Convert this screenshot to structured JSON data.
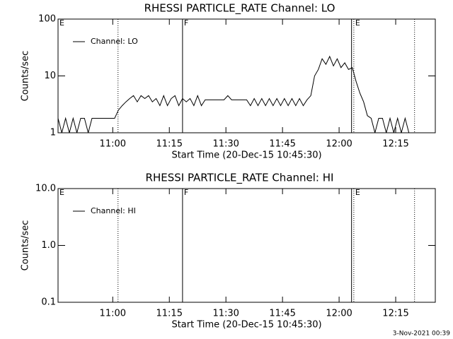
{
  "chart_data": [
    {
      "type": "line",
      "title": "RHESSI PARTICLE_RATE Channel: LO",
      "xlabel": "Start Time (20-Dec-15 10:45:30)",
      "ylabel": "Counts/sec",
      "x": [
        0,
        1,
        2,
        3,
        4,
        5,
        6,
        7,
        8,
        9,
        10,
        11,
        12,
        13,
        14,
        15,
        16,
        17,
        18,
        19,
        20,
        21,
        22,
        23,
        24,
        25,
        26,
        27,
        28,
        29,
        30,
        31,
        32,
        33,
        34,
        35,
        36,
        37,
        38,
        39,
        40,
        41,
        42,
        43,
        44,
        45,
        46,
        47,
        48,
        49,
        50,
        51,
        52,
        53,
        54,
        55,
        56,
        57,
        58,
        59,
        60,
        61,
        62,
        63,
        64,
        65,
        66,
        67,
        68,
        69,
        70,
        71,
        72,
        73,
        74,
        75,
        76,
        77,
        78,
        79,
        80,
        81,
        82,
        83,
        84,
        85,
        86,
        87,
        88,
        89,
        90,
        91,
        92,
        93,
        94,
        95,
        96,
        97,
        98,
        99
      ],
      "series": [
        {
          "name": "Channel: LO",
          "color": "#000000",
          "values": [
            1.8,
            1,
            1.8,
            1,
            1.8,
            1,
            1.8,
            1.8,
            1,
            1.8,
            1.8,
            1.8,
            1.8,
            1.8,
            1.8,
            1.8,
            2.5,
            3,
            3.5,
            4,
            4.5,
            3.5,
            4.5,
            4,
            4.5,
            3.5,
            4,
            3,
            4.5,
            3,
            4,
            4.5,
            3,
            4,
            3.5,
            4,
            3,
            4.5,
            3,
            3.8,
            3.8,
            3.8,
            3.8,
            3.8,
            3.8,
            4.5,
            3.8,
            3.8,
            3.8,
            3.8,
            3.8,
            3,
            4,
            3,
            4,
            3,
            4,
            3,
            4,
            3,
            4,
            3,
            4,
            3,
            4,
            3,
            3.8,
            4.5,
            10,
            13,
            20,
            16,
            22,
            15,
            20,
            14,
            17,
            13,
            14,
            8,
            5,
            3.5,
            2,
            1.8,
            1,
            1.8,
            1.8,
            1,
            1.8,
            1,
            1.8,
            1,
            1.8,
            1,
            1,
            1,
            1,
            1,
            1,
            1
          ]
        }
      ],
      "xlim": [
        0,
        100
      ],
      "xticks": [
        {
          "value": 14.5,
          "label": "11:00"
        },
        {
          "value": 29.5,
          "label": "11:15"
        },
        {
          "value": 44.5,
          "label": "11:30"
        },
        {
          "value": 59.5,
          "label": "11:45"
        },
        {
          "value": 74.5,
          "label": "12:00"
        },
        {
          "value": 89.5,
          "label": "12:15"
        }
      ],
      "ylim": [
        1,
        100
      ],
      "yticks": [
        1,
        10,
        100
      ],
      "log_y": true,
      "legend": "upper left",
      "vlines": [
        {
          "x": 15.9,
          "style": "dotted"
        },
        {
          "x": 33,
          "style": "solid"
        },
        {
          "x": 77.8,
          "style": "solid"
        },
        {
          "x": 78.4,
          "style": "dotted"
        },
        {
          "x": 94.5,
          "style": "dotted"
        }
      ],
      "flags": [
        {
          "x": 0,
          "label": "E"
        },
        {
          "x": 33,
          "label": "F"
        },
        {
          "x": 78.4,
          "label": "E"
        }
      ]
    },
    {
      "type": "line",
      "title": "RHESSI PARTICLE_RATE Channel: HI",
      "xlabel": "Start Time (20-Dec-15 10:45:30)",
      "ylabel": "Counts/sec",
      "x": [],
      "series": [
        {
          "name": "Channel: HI",
          "color": "#000000",
          "values": []
        }
      ],
      "xlim": [
        0,
        100
      ],
      "xticks": [
        {
          "value": 14.5,
          "label": "11:00"
        },
        {
          "value": 29.5,
          "label": "11:15"
        },
        {
          "value": 44.5,
          "label": "11:30"
        },
        {
          "value": 59.5,
          "label": "11:45"
        },
        {
          "value": 74.5,
          "label": "12:00"
        },
        {
          "value": 89.5,
          "label": "12:15"
        }
      ],
      "ylim": [
        0.1,
        10
      ],
      "yticks": [
        0.1,
        {
          "value": 1,
          "label": "1.0"
        },
        {
          "value": 10,
          "label": "10.0"
        }
      ],
      "log_y": true,
      "legend": "upper left",
      "vlines": [
        {
          "x": 15.9,
          "style": "dotted"
        },
        {
          "x": 33,
          "style": "solid"
        },
        {
          "x": 77.8,
          "style": "solid"
        },
        {
          "x": 78.4,
          "style": "dotted"
        },
        {
          "x": 94.5,
          "style": "dotted"
        }
      ],
      "flags": [
        {
          "x": 0,
          "label": "E"
        },
        {
          "x": 33,
          "label": "F"
        },
        {
          "x": 78.4,
          "label": "E"
        }
      ]
    }
  ],
  "footer": "3-Nov-2021 00:39"
}
